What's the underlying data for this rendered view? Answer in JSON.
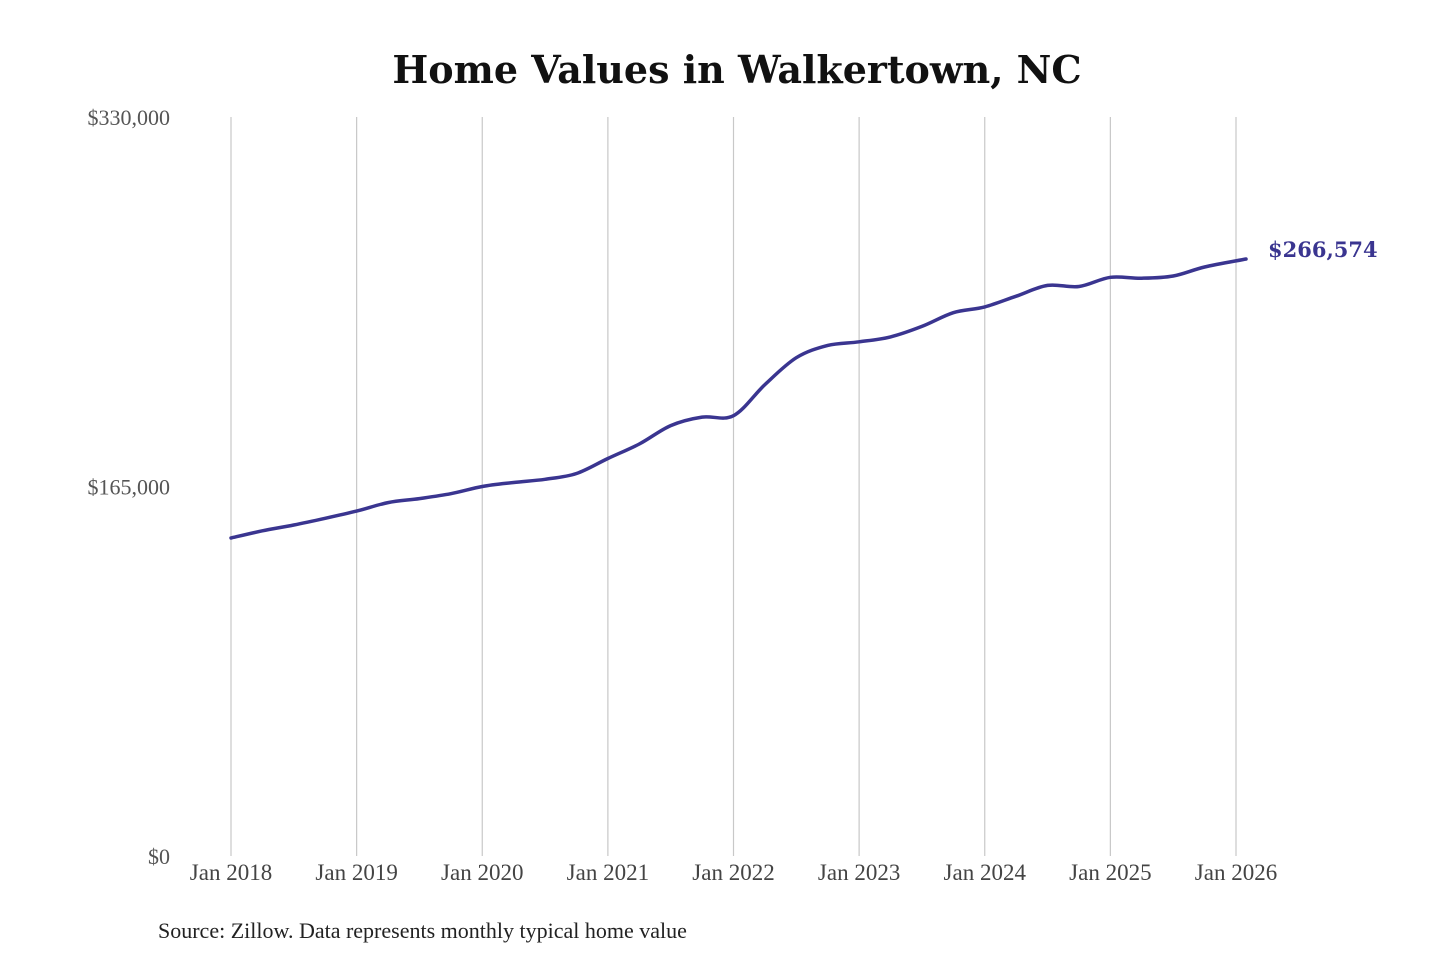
{
  "chart_data": {
    "type": "line",
    "title": "Home Values in Walkertown, NC",
    "source": "Source: Zillow. Data represents monthly typical home value",
    "ylim": [
      0,
      330000
    ],
    "y_ticks": [
      {
        "value": 0,
        "label": "$0"
      },
      {
        "value": 165000,
        "label": "$165,000"
      },
      {
        "value": 330000,
        "label": "$330,000"
      }
    ],
    "x_ticks": [
      {
        "value": 2018,
        "label": "Jan 2018"
      },
      {
        "value": 2019,
        "label": "Jan 2019"
      },
      {
        "value": 2020,
        "label": "Jan 2020"
      },
      {
        "value": 2021,
        "label": "Jan 2021"
      },
      {
        "value": 2022,
        "label": "Jan 2022"
      },
      {
        "value": 2023,
        "label": "Jan 2023"
      },
      {
        "value": 2024,
        "label": "Jan 2024"
      },
      {
        "value": 2025,
        "label": "Jan 2025"
      },
      {
        "value": 2026,
        "label": "Jan 2026"
      }
    ],
    "xlim": [
      2018,
      2026
    ],
    "grid": "vertical",
    "line_color": "#3a3590",
    "end_label": "$266,574",
    "series": [
      {
        "points": [
          [
            2018.0,
            142000
          ],
          [
            2018.25,
            145200
          ],
          [
            2018.5,
            147800
          ],
          [
            2018.75,
            150800
          ],
          [
            2019.0,
            154000
          ],
          [
            2019.25,
            157800
          ],
          [
            2019.5,
            159600
          ],
          [
            2019.75,
            161800
          ],
          [
            2020.0,
            165000
          ],
          [
            2020.25,
            166800
          ],
          [
            2020.5,
            168200
          ],
          [
            2020.75,
            170800
          ],
          [
            2021.0,
            177500
          ],
          [
            2021.25,
            184000
          ],
          [
            2021.5,
            192200
          ],
          [
            2021.75,
            196000
          ],
          [
            2022.0,
            196600
          ],
          [
            2022.25,
            210500
          ],
          [
            2022.5,
            222500
          ],
          [
            2022.75,
            228000
          ],
          [
            2023.0,
            229600
          ],
          [
            2023.25,
            231800
          ],
          [
            2023.5,
            236500
          ],
          [
            2023.75,
            242600
          ],
          [
            2024.0,
            245200
          ],
          [
            2024.25,
            250000
          ],
          [
            2024.5,
            254800
          ],
          [
            2024.75,
            254300
          ],
          [
            2025.0,
            258400
          ],
          [
            2025.25,
            258000
          ],
          [
            2025.5,
            259000
          ],
          [
            2025.75,
            263000
          ],
          [
            2026.08,
            266574
          ]
        ]
      }
    ]
  }
}
